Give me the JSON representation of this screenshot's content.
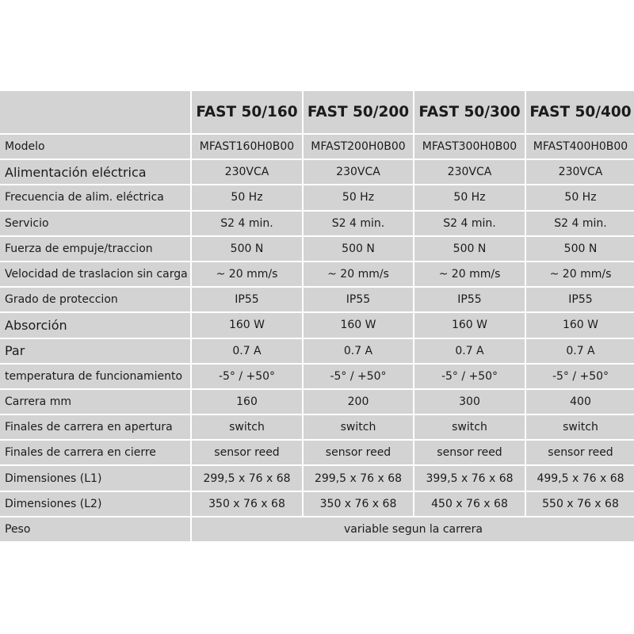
{
  "columns": [
    "",
    "FAST 50/160",
    "FAST 50/200",
    "FAST 50/300",
    "FAST 50/400"
  ],
  "rows": [
    {
      "label": "Modelo",
      "values": [
        "MFAST160H0B00",
        "MFAST200H0B00",
        "MFAST300H0B00",
        "MFAST400H0B00"
      ]
    },
    {
      "label": "Alimentación eléctrica",
      "values": [
        "230VCA",
        "230VCA",
        "230VCA",
        "230VCA"
      ]
    },
    {
      "label": "Frecuencia de alim. eléctrica",
      "values": [
        "50 Hz",
        "50 Hz",
        "50 Hz",
        "50 Hz"
      ]
    },
    {
      "label": "Servicio",
      "values": [
        "S2 4 min.",
        "S2 4 min.",
        "S2 4 min.",
        "S2 4 min."
      ]
    },
    {
      "label": "Fuerza de empuje/traccion",
      "values": [
        "500 N",
        "500 N",
        "500 N",
        "500 N"
      ]
    },
    {
      "label": "Velocidad de traslacion sin carga",
      "values": [
        "~ 20 mm/s",
        "~ 20 mm/s",
        "~ 20 mm/s",
        "~ 20 mm/s"
      ]
    },
    {
      "label": "Grado de proteccion",
      "values": [
        "IP55",
        "IP55",
        "IP55",
        "IP55"
      ]
    },
    {
      "label": "Absorción",
      "values": [
        "160 W",
        "160 W",
        "160 W",
        "160 W"
      ]
    },
    {
      "label": "Par",
      "values": [
        "0.7 A",
        "0.7 A",
        "0.7 A",
        "0.7 A"
      ]
    },
    {
      "label": "temperatura de funcionamiento",
      "values": [
        "-5° / +50°",
        "-5° / +50°",
        "-5° / +50°",
        "-5° / +50°"
      ]
    },
    {
      "label": "Carrera mm",
      "values": [
        "160",
        "200",
        "300",
        "400"
      ]
    },
    {
      "label": "Finales de carrera en apertura",
      "values": [
        "switch",
        "switch",
        "switch",
        "switch"
      ]
    },
    {
      "label": "Finales de carrera en cierre",
      "values": [
        "sensor reed",
        "sensor reed",
        "sensor reed",
        "sensor reed"
      ]
    },
    {
      "label": "Dimensiones (L1)",
      "values": [
        "299,5 x 76 x 68",
        "299,5 x 76 x 68",
        "399,5 x 76 x 68",
        "499,5 x 76 x 68"
      ]
    },
    {
      "label": "Dimensiones (L2)",
      "values": [
        "350 x 76 x 68",
        "350 x 76 x 68",
        "450 x 76 x 68",
        "550 x 76 x 68"
      ]
    }
  ],
  "weight_row": {
    "label": "Peso",
    "value": "variable segun la carrera"
  }
}
